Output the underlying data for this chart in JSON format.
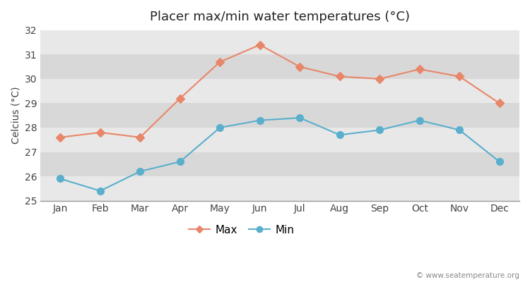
{
  "title": "Placer max/min water temperatures (°C)",
  "xlabel": "",
  "ylabel": "Celcius (°C)",
  "months": [
    "Jan",
    "Feb",
    "Mar",
    "Apr",
    "May",
    "Jun",
    "Jul",
    "Aug",
    "Sep",
    "Oct",
    "Nov",
    "Dec"
  ],
  "max_values": [
    27.6,
    27.8,
    27.6,
    29.2,
    30.7,
    31.4,
    30.5,
    30.1,
    30.0,
    30.4,
    30.1,
    29.0
  ],
  "min_values": [
    25.9,
    25.4,
    26.2,
    26.6,
    28.0,
    28.3,
    28.4,
    27.7,
    27.9,
    28.3,
    27.9,
    26.6
  ],
  "max_color": "#e8866a",
  "min_color": "#5aafcc",
  "ylim": [
    25.0,
    32.0
  ],
  "yticks": [
    25,
    26,
    27,
    28,
    29,
    30,
    31,
    32
  ],
  "band_colors": [
    "#e8e8e8",
    "#d8d8d8"
  ],
  "figure_bg": "#ffffff",
  "watermark": "© www.seatemperature.org",
  "legend_labels": [
    "Max",
    "Min"
  ],
  "title_fontsize": 13,
  "label_fontsize": 10,
  "tick_fontsize": 10,
  "marker_size_max": 6,
  "marker_size_min": 7
}
